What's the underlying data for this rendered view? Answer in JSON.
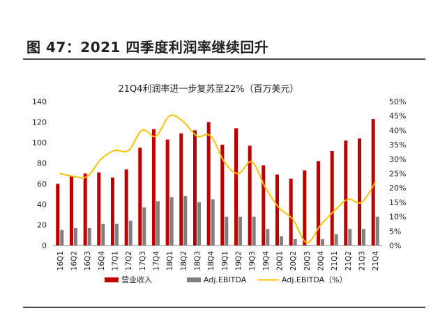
{
  "figure_title": "图 47：2021 四季度利润率继续回升",
  "chart_data": {
    "type": "bar",
    "title": "21Q4利润率进一步复苏至22%（百万美元）",
    "categories": [
      "16Q1",
      "16Q2",
      "16Q3",
      "16Q4",
      "17Q1",
      "17Q2",
      "17Q3",
      "17Q4",
      "18Q1",
      "18Q2",
      "18Q3",
      "18Q4",
      "19Q1",
      "19Q2",
      "19Q3",
      "19Q4",
      "20Q1",
      "20Q2",
      "20Q3",
      "20Q4",
      "21Q1",
      "21Q2",
      "21Q3",
      "21Q4"
    ],
    "ylim": [
      0,
      140
    ],
    "y_ticks": [
      0,
      20,
      40,
      60,
      80,
      100,
      120,
      140
    ],
    "y2lim": [
      0,
      50
    ],
    "y2_ticks": [
      "0%",
      "5%",
      "10%",
      "15%",
      "20%",
      "25%",
      "30%",
      "35%",
      "40%",
      "45%",
      "50%"
    ],
    "series": [
      {
        "name": "营业收入",
        "type": "bar",
        "axis": "left",
        "color": "#c00000",
        "values": [
          60,
          68,
          70,
          71,
          66,
          74,
          95,
          113,
          103,
          109,
          112,
          120,
          98,
          114,
          97,
          78,
          69,
          65,
          73,
          82,
          92,
          102,
          104,
          123
        ]
      },
      {
        "name": "Adj.EBITDA",
        "type": "bar",
        "axis": "left",
        "color": "#808080",
        "values": [
          15,
          17,
          17,
          21,
          21,
          24,
          37,
          43,
          47,
          48,
          42,
          45,
          28,
          28,
          28,
          16,
          9,
          6,
          0.5,
          6,
          11,
          16,
          16,
          28
        ]
      },
      {
        "name": "Adj.EBITDA（%）",
        "type": "line",
        "axis": "right",
        "color": "#ffc000",
        "values": [
          25,
          24,
          24,
          30,
          33,
          33,
          40,
          38,
          45,
          43,
          38,
          38,
          29,
          25,
          29,
          20,
          13,
          9,
          1,
          7,
          12,
          16,
          15,
          22
        ]
      }
    ]
  }
}
